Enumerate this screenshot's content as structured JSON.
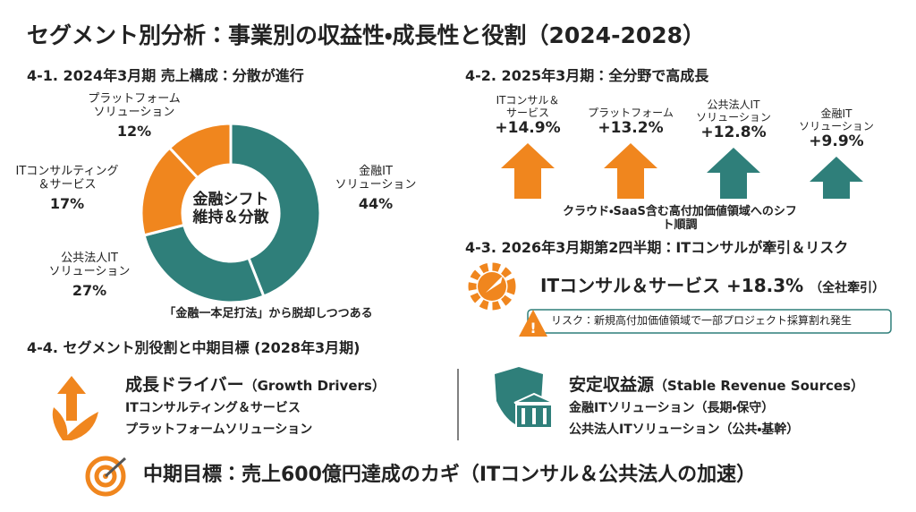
{
  "title": "セグメント別分析：事業別の収益性・成長性と役割（2024-2028）",
  "chart_data": {
    "type": "pie",
    "title": "4-1. 2024年3月期 売上構成：分散が進行",
    "categories": [
      "金融IT\nソリューション",
      "公共法人IT\nソリューション",
      "ITコンサルティング\n＆サービス",
      "プラットフォーム\nソリューション"
    ],
    "values": [
      44,
      27,
      17,
      12
    ],
    "value_labels": [
      "44%",
      "27%",
      "17%",
      "12%"
    ],
    "colors": [
      "#2f7f7a",
      "#2f7f7a",
      "#f0861e",
      "#f0861e"
    ],
    "center_label": "金融シフト\n維持＆分散",
    "note": "「金融一本足打法」から脱却しつつある"
  },
  "growth": {
    "title": "4-2. 2025年3月期：全分野で高成長",
    "items": [
      {
        "label": "ITコンサル＆\nサービス",
        "value": "+14.9%",
        "color": "#f0861e"
      },
      {
        "label": "プラットフォーム",
        "value": "+13.2%",
        "color": "#f0861e"
      },
      {
        "label": "公共法人IT\nソリューション",
        "value": "+12.8%",
        "color": "#2f7f7a"
      },
      {
        "label": "金融IT\nソリューション",
        "value": "+9.9%",
        "color": "#2f7f7a"
      }
    ],
    "note": "クラウド・SaaS含む高付加価値領域へのシフト順調"
  },
  "q4": {
    "title": "4-3. 2026年3月期第2四半期：ITコンサルが牽引＆リスク",
    "headline": "ITコンサル＆サービス +18.3%",
    "headline_note": "（全社牽引）",
    "risk": "リスク：新規高付加価値領域で一部プロジェクト採算割れ発生"
  },
  "roles": {
    "title": "4-4. セグメント別役割と中期目標 (2028年3月期)",
    "drivers": {
      "heading": "成長ドライバー",
      "heading_en": "（Growth Drivers）",
      "items": [
        "ITコンサルティング＆サービス",
        "プラットフォームソリューション"
      ]
    },
    "stable": {
      "heading": "安定収益源",
      "heading_en": "（Stable Revenue Sources）",
      "items": [
        "金融ITソリューション（長期・保守）",
        "公共法人ITソリューション（公共・基幹）"
      ]
    }
  },
  "goal": "中期目標：売上600億円達成のカギ（ITコンサル＆公共法人の加速）"
}
